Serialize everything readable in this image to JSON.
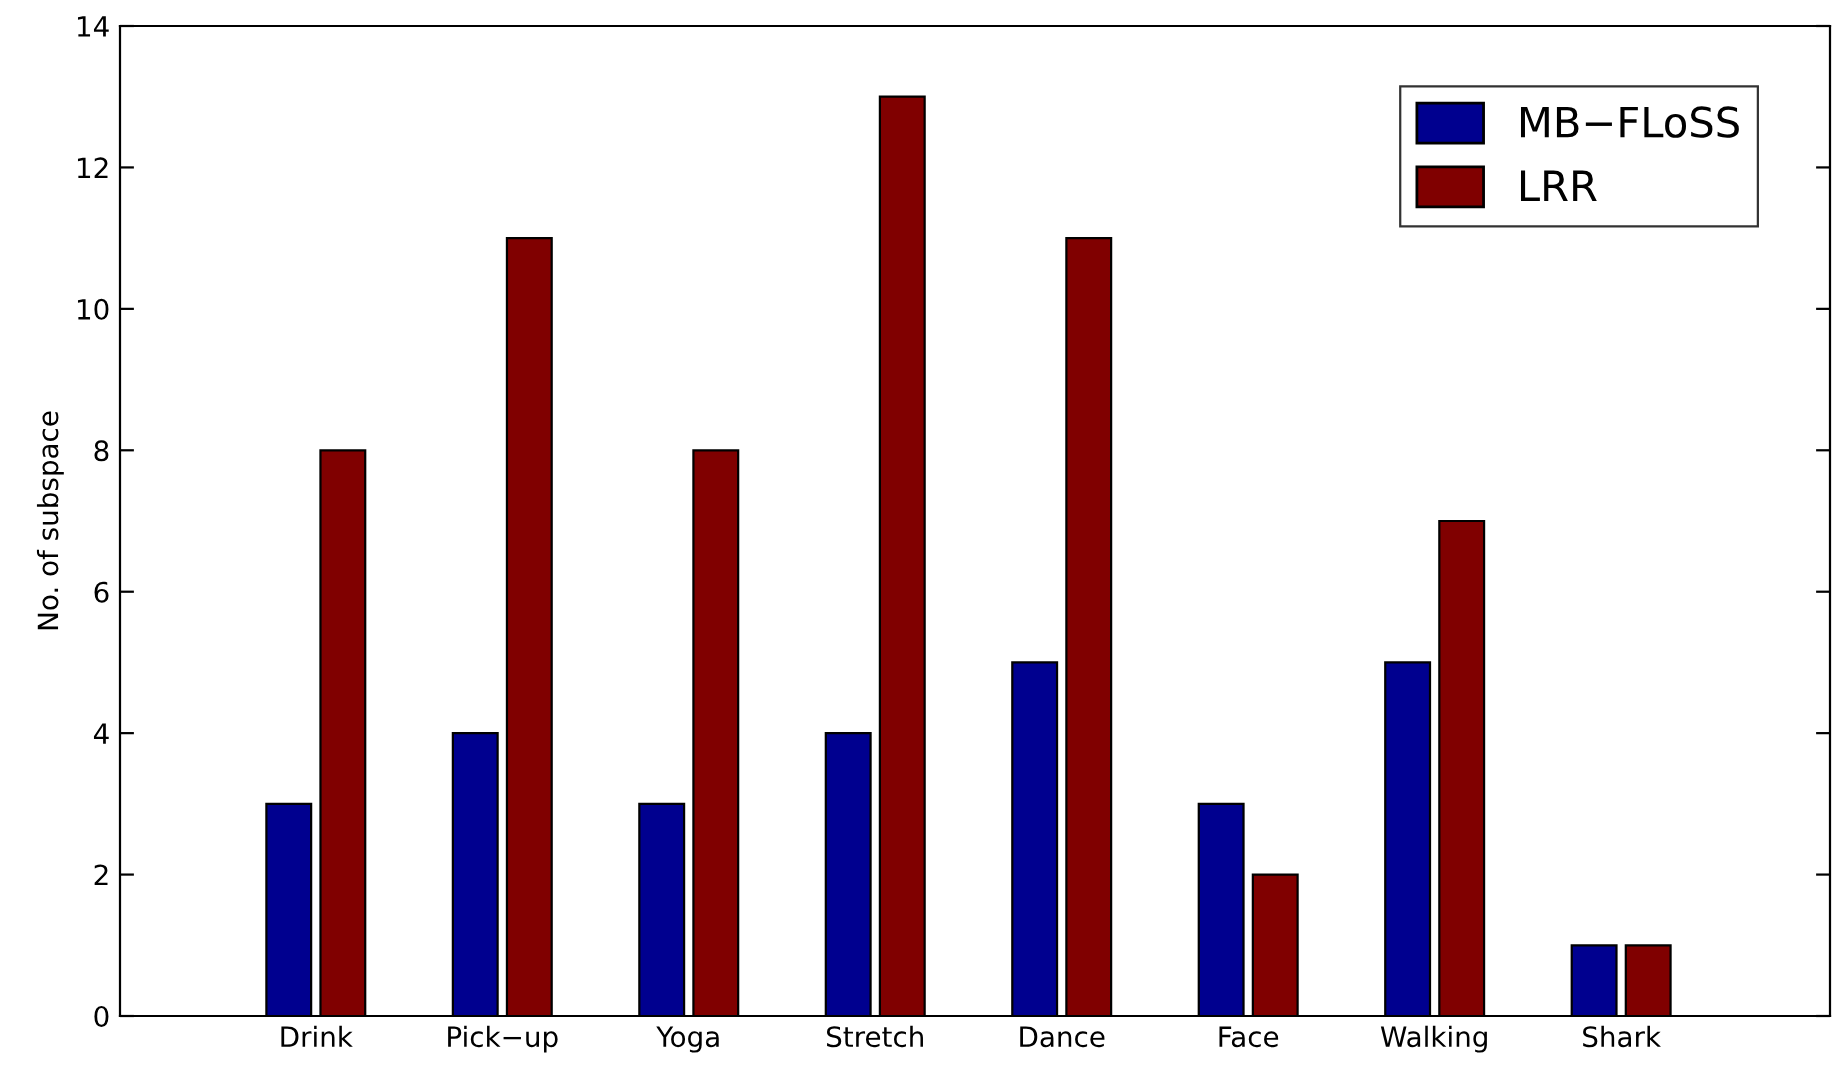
{
  "chart_data": {
    "type": "bar",
    "ylabel": "No. of subspace",
    "categories": [
      "Drink",
      "Pick−up",
      "Yoga",
      "Stretch",
      "Dance",
      "Face",
      "Walking",
      "Shark"
    ],
    "series": [
      {
        "name": "MB−FLoSS",
        "color": "#00008f",
        "values": [
          3,
          4,
          3,
          4,
          5,
          3,
          5,
          1
        ]
      },
      {
        "name": "LRR",
        "color": "#800000",
        "values": [
          8,
          11,
          8,
          13,
          11,
          2,
          7,
          1
        ]
      }
    ],
    "ylim": [
      0,
      14
    ],
    "yticks": [
      0,
      2,
      4,
      6,
      8,
      10,
      12,
      14
    ],
    "grid": false,
    "legend": "top right"
  }
}
